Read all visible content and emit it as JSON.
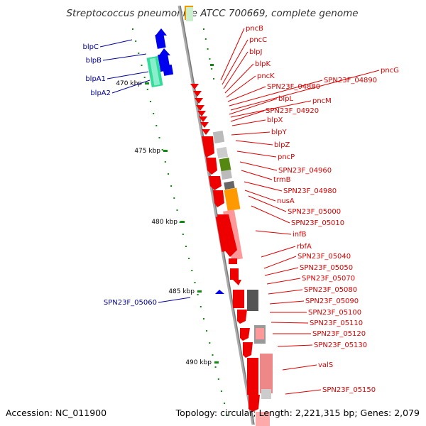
{
  "title": "Streptococcus pneumoniae ATCC 700669, complete genome",
  "footer": {
    "accession": "Accession: NC_011900",
    "topology": "Topology: circular; Length: 2,221,315 bp; Genes: 2,079"
  },
  "colors": {
    "forward": "#0000ee",
    "reverse": "#ee0000",
    "forward_label": "#000099",
    "reverse_label": "#dd0000",
    "rna": "#33cc99",
    "ruler": "#118811",
    "backbone": "#888888"
  },
  "scale": {
    "ticks": [
      {
        "label": "470 kbp",
        "kbp": 470
      },
      {
        "label": "475 kbp",
        "kbp": 475
      },
      {
        "label": "480 kbp",
        "kbp": 480
      },
      {
        "label": "485 kbp",
        "kbp": 485
      },
      {
        "label": "490 kbp",
        "kbp": 490
      }
    ]
  },
  "forward_labels": [
    "blpC",
    "blpB",
    "blpA1",
    "blpA2",
    "SPN23F_05060"
  ],
  "reverse_labels": [
    "pncB",
    "pncC",
    "blpJ",
    "blpK",
    "pncK",
    "SPN23F_04880",
    "SPN23F_04890",
    "pncG",
    "blpL",
    "pncM",
    "SPN23F_04920",
    "blpX",
    "blpY",
    "blpZ",
    "pncP",
    "SPN23F_04960",
    "trmB",
    "SPN23F_04980",
    "nusA",
    "SPN23F_05000",
    "SPN23F_05010",
    "infB",
    "rbfA",
    "SPN23F_05040",
    "SPN23F_05050",
    "SPN23F_05070",
    "SPN23F_05080",
    "SPN23F_05090",
    "SPN23F_05100",
    "SPN23F_05110",
    "SPN23F_05120",
    "SPN23F_05130",
    "valS",
    "SPN23F_05150"
  ]
}
